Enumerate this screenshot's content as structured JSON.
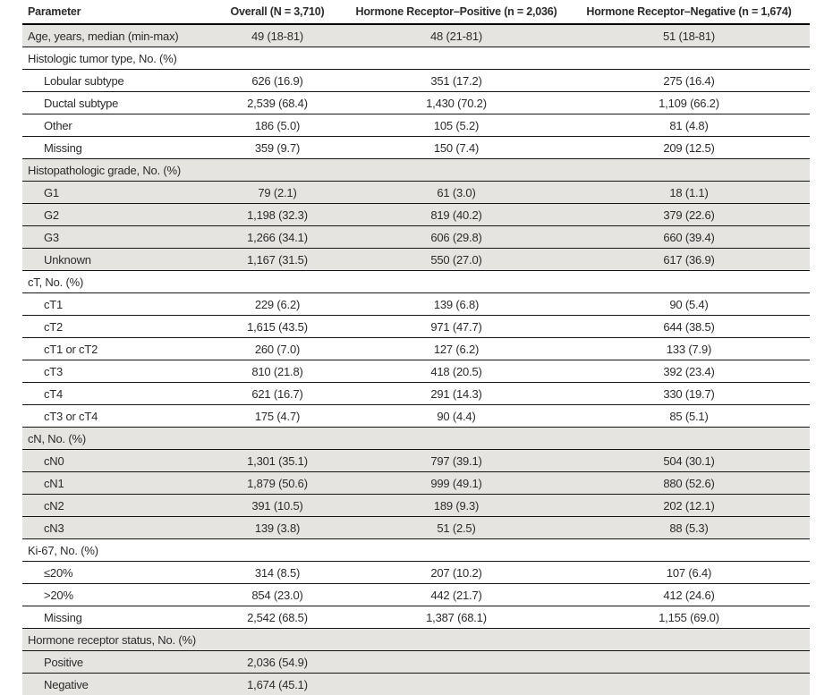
{
  "colors": {
    "row_shade": "#e5e4e1",
    "rule": "#000000",
    "text": "#2b2b2b",
    "background": "#ffffff"
  },
  "table": {
    "columns": [
      {
        "label": "Parameter"
      },
      {
        "label": "Overall (N = 3,710)"
      },
      {
        "label": "Hormone Receptor–Positive (n = 2,036)"
      },
      {
        "label": "Hormone Receptor–Negative (n = 1,674)"
      }
    ],
    "rows": [
      {
        "label": "Age, years, median (min-max)",
        "indent": 0,
        "section": false,
        "shaded": true,
        "values": [
          "49 (18-81)",
          "48 (21-81)",
          "51 (18-81)"
        ]
      },
      {
        "label": "Histologic tumor type, No. (%)",
        "indent": 0,
        "section": true,
        "shaded": false,
        "values": [
          "",
          "",
          ""
        ]
      },
      {
        "label": "Lobular subtype",
        "indent": 1,
        "section": false,
        "shaded": false,
        "values": [
          "626 (16.9)",
          "351 (17.2)",
          "275 (16.4)"
        ]
      },
      {
        "label": "Ductal subtype",
        "indent": 1,
        "section": false,
        "shaded": false,
        "values": [
          "2,539 (68.4)",
          "1,430 (70.2)",
          "1,109 (66.2)"
        ]
      },
      {
        "label": "Other",
        "indent": 1,
        "section": false,
        "shaded": false,
        "values": [
          "186 (5.0)",
          "105 (5.2)",
          "81 (4.8)"
        ]
      },
      {
        "label": "Missing",
        "indent": 1,
        "section": false,
        "shaded": false,
        "values": [
          "359 (9.7)",
          "150 (7.4)",
          "209 (12.5)"
        ]
      },
      {
        "label": "Histopathologic grade, No. (%)",
        "indent": 0,
        "section": true,
        "shaded": true,
        "values": [
          "",
          "",
          ""
        ]
      },
      {
        "label": "G1",
        "indent": 1,
        "section": false,
        "shaded": true,
        "values": [
          "79 (2.1)",
          "61 (3.0)",
          "18 (1.1)"
        ]
      },
      {
        "label": "G2",
        "indent": 1,
        "section": false,
        "shaded": true,
        "values": [
          "1,198 (32.3)",
          "819 (40.2)",
          "379 (22.6)"
        ]
      },
      {
        "label": "G3",
        "indent": 1,
        "section": false,
        "shaded": true,
        "values": [
          "1,266 (34.1)",
          "606 (29.8)",
          "660 (39.4)"
        ]
      },
      {
        "label": "Unknown",
        "indent": 1,
        "section": false,
        "shaded": true,
        "values": [
          "1,167 (31.5)",
          "550 (27.0)",
          "617 (36.9)"
        ]
      },
      {
        "label": "cT, No. (%)",
        "indent": 0,
        "section": true,
        "shaded": false,
        "values": [
          "",
          "",
          ""
        ]
      },
      {
        "label": "cT1",
        "indent": 1,
        "section": false,
        "shaded": false,
        "values": [
          "229 (6.2)",
          "139 (6.8)",
          "90 (5.4)"
        ]
      },
      {
        "label": "cT2",
        "indent": 1,
        "section": false,
        "shaded": false,
        "values": [
          "1,615 (43.5)",
          "971 (47.7)",
          "644 (38.5)"
        ]
      },
      {
        "label": "cT1 or cT2",
        "indent": 1,
        "section": false,
        "shaded": false,
        "values": [
          "260 (7.0)",
          "127 (6.2)",
          "133 (7.9)"
        ]
      },
      {
        "label": "cT3",
        "indent": 1,
        "section": false,
        "shaded": false,
        "values": [
          "810 (21.8)",
          "418 (20.5)",
          "392 (23.4)"
        ]
      },
      {
        "label": "cT4",
        "indent": 1,
        "section": false,
        "shaded": false,
        "values": [
          "621 (16.7)",
          "291 (14.3)",
          "330 (19.7)"
        ]
      },
      {
        "label": "cT3 or cT4",
        "indent": 1,
        "section": false,
        "shaded": false,
        "values": [
          "175 (4.7)",
          "90 (4.4)",
          "85 (5.1)"
        ]
      },
      {
        "label": "cN, No. (%)",
        "indent": 0,
        "section": true,
        "shaded": true,
        "values": [
          "",
          "",
          ""
        ]
      },
      {
        "label": "cN0",
        "indent": 1,
        "section": false,
        "shaded": true,
        "values": [
          "1,301 (35.1)",
          "797 (39.1)",
          "504 (30.1)"
        ]
      },
      {
        "label": "cN1",
        "indent": 1,
        "section": false,
        "shaded": true,
        "values": [
          "1,879 (50.6)",
          "999 (49.1)",
          "880 (52.6)"
        ]
      },
      {
        "label": "cN2",
        "indent": 1,
        "section": false,
        "shaded": true,
        "values": [
          "391 (10.5)",
          "189 (9.3)",
          "202 (12.1)"
        ]
      },
      {
        "label": "cN3",
        "indent": 1,
        "section": false,
        "shaded": true,
        "values": [
          "139 (3.8)",
          "51 (2.5)",
          "88 (5.3)"
        ]
      },
      {
        "label": "Ki-67, No. (%)",
        "indent": 0,
        "section": true,
        "shaded": false,
        "values": [
          "",
          "",
          ""
        ]
      },
      {
        "label": "≤20%",
        "indent": 1,
        "section": false,
        "shaded": false,
        "values": [
          "314 (8.5)",
          "207 (10.2)",
          "107 (6.4)"
        ]
      },
      {
        "label": ">20%",
        "indent": 1,
        "section": false,
        "shaded": false,
        "values": [
          "854 (23.0)",
          "442 (21.7)",
          "412 (24.6)"
        ]
      },
      {
        "label": "Missing",
        "indent": 1,
        "section": false,
        "shaded": false,
        "values": [
          "2,542 (68.5)",
          "1,387 (68.1)",
          "1,155 (69.0)"
        ]
      },
      {
        "label": "Hormone receptor status, No. (%)",
        "indent": 0,
        "section": true,
        "shaded": true,
        "values": [
          "",
          "",
          ""
        ]
      },
      {
        "label": "Positive",
        "indent": 1,
        "section": false,
        "shaded": true,
        "values": [
          "2,036 (54.9)",
          "",
          ""
        ]
      },
      {
        "label": "Negative",
        "indent": 1,
        "section": false,
        "shaded": true,
        "values": [
          "1,674 (45.1)",
          "",
          ""
        ]
      }
    ]
  }
}
